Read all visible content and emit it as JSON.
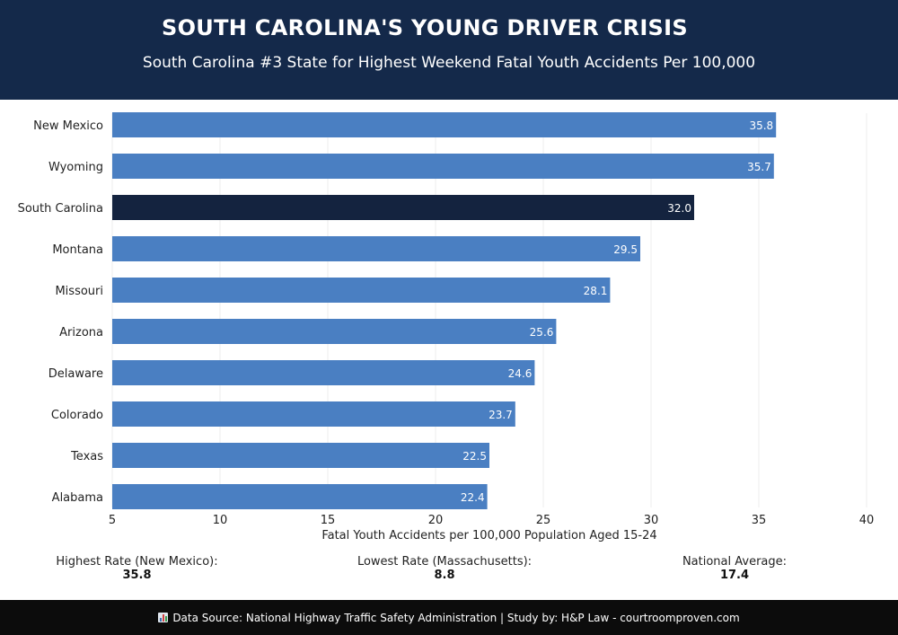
{
  "header": {
    "title": "SOUTH CAROLINA'S YOUNG DRIVER CRISIS",
    "subtitle": "South Carolina #3 State for Highest Weekend Fatal Youth Accidents Per 100,000"
  },
  "chart_data": {
    "type": "bar",
    "orientation": "horizontal",
    "categories": [
      "New Mexico",
      "Wyoming",
      "South Carolina",
      "Montana",
      "Missouri",
      "Arizona",
      "Delaware",
      "Colorado",
      "Texas",
      "Alabama"
    ],
    "values": [
      35.8,
      35.7,
      32.0,
      29.5,
      28.1,
      25.6,
      24.6,
      23.7,
      22.5,
      22.4
    ],
    "value_labels": [
      "35.8",
      "35.7",
      "32.0",
      "29.5",
      "28.1",
      "25.6",
      "24.6",
      "23.7",
      "22.5",
      "22.4"
    ],
    "highlight": "South Carolina",
    "xlabel": "Fatal Youth Accidents per 100,000 Population Aged 15-24",
    "xlim": [
      5,
      40
    ],
    "xticks": [
      5,
      10,
      15,
      20,
      25,
      30,
      35,
      40
    ],
    "grid": "vertical",
    "colors": {
      "bar": "#4a7fc2",
      "highlight": "#14233f",
      "grid": "#ececec"
    }
  },
  "stats": [
    {
      "label": "Highest Rate (New Mexico):",
      "value": "35.8"
    },
    {
      "label": "Lowest Rate (Massachusetts):",
      "value": "8.8"
    },
    {
      "label": "National Average:",
      "value": "17.4"
    }
  ],
  "footer": {
    "icon": "bar-chart-icon",
    "text": "Data Source: National Highway Traffic Safety Administration | Study by: H&P Law - courtroomproven.com"
  }
}
